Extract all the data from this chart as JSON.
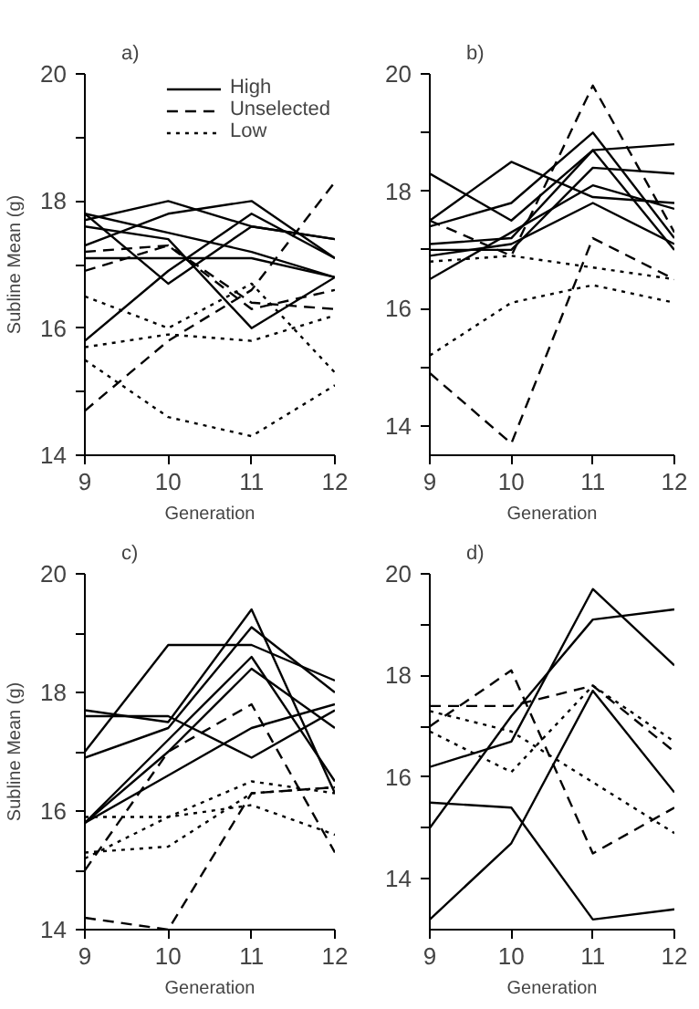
{
  "chart_data": [
    {
      "type": "line",
      "title": "a)",
      "xlabel": "Generation",
      "ylabel": "Subline Mean (g)",
      "x": [
        9,
        10,
        11,
        12
      ],
      "xlim": [
        9,
        12
      ],
      "xticks": [
        9,
        10,
        11,
        12
      ],
      "ylim": [
        14,
        20
      ],
      "yticks": [
        14,
        {
          "value": 15,
          "label": null
        },
        16,
        {
          "value": 17,
          "label": null
        },
        18,
        {
          "value": 19,
          "label": null
        },
        20
      ],
      "grid": false,
      "legend": "top right",
      "series": [
        {
          "name": "High",
          "color": "#000000",
          "line_style": "solid",
          "values": [
            17.8,
            17.5,
            17.2,
            16.8
          ]
        },
        {
          "color": "#000000",
          "line_style": "solid",
          "values": [
            17.7,
            18.0,
            17.6,
            17.4
          ]
        },
        {
          "color": "#000000",
          "line_style": "solid",
          "values": [
            17.3,
            17.8,
            18.0,
            17.1
          ]
        },
        {
          "color": "#000000",
          "line_style": "solid",
          "values": [
            17.1,
            17.1,
            17.1,
            16.8
          ]
        },
        {
          "color": "#000000",
          "line_style": "solid",
          "values": [
            15.8,
            16.9,
            17.8,
            17.1
          ]
        },
        {
          "color": "#000000",
          "line_style": "solid",
          "values": [
            17.8,
            16.7,
            17.6,
            17.4
          ]
        },
        {
          "color": "#000000",
          "line_style": "solid",
          "values": [
            17.6,
            17.4,
            16.0,
            16.8
          ]
        },
        {
          "name": "Unselected",
          "color": "#000000",
          "line_style": "dashed",
          "values": [
            16.9,
            17.3,
            16.3,
            16.6
          ]
        },
        {
          "color": "#000000",
          "line_style": "dashed",
          "values": [
            14.7,
            15.8,
            16.6,
            18.3
          ]
        },
        {
          "color": "#000000",
          "line_style": "dashed",
          "values": [
            17.2,
            17.3,
            16.4,
            16.3
          ]
        },
        {
          "name": "Low",
          "color": "#000000",
          "line_style": "dotted",
          "values": [
            15.7,
            15.9,
            15.8,
            16.2
          ]
        },
        {
          "color": "#000000",
          "line_style": "dotted",
          "values": [
            15.5,
            14.6,
            14.3,
            15.1
          ]
        },
        {
          "color": "#000000",
          "line_style": "dotted",
          "values": [
            16.5,
            16.0,
            16.7,
            15.3
          ]
        }
      ]
    },
    {
      "type": "line",
      "title": "b)",
      "xlabel": "Generation",
      "x": [
        9,
        10,
        11,
        12
      ],
      "xlim": [
        9,
        12
      ],
      "xticks": [
        9,
        10,
        11,
        12
      ],
      "ylim": [
        13.5,
        20
      ],
      "yticks": [
        14,
        {
          "value": 15,
          "label": null
        },
        16,
        {
          "value": 17,
          "label": null
        },
        18,
        {
          "value": 19,
          "label": null
        },
        20
      ],
      "grid": false,
      "series": [
        {
          "color": "#000000",
          "line_style": "solid",
          "values": [
            18.3,
            17.5,
            18.7,
            17.0
          ]
        },
        {
          "color": "#000000",
          "line_style": "solid",
          "values": [
            17.5,
            18.5,
            17.9,
            17.8
          ]
        },
        {
          "color": "#000000",
          "line_style": "solid",
          "values": [
            17.4,
            17.8,
            19.0,
            17.2
          ]
        },
        {
          "color": "#000000",
          "line_style": "solid",
          "values": [
            17.1,
            17.2,
            18.7,
            18.8
          ]
        },
        {
          "color": "#000000",
          "line_style": "solid",
          "values": [
            17.0,
            17.0,
            18.4,
            18.3
          ]
        },
        {
          "color": "#000000",
          "line_style": "solid",
          "values": [
            16.5,
            17.3,
            18.1,
            17.7
          ]
        },
        {
          "color": "#000000",
          "line_style": "solid",
          "values": [
            16.9,
            17.1,
            17.8,
            17.1
          ]
        },
        {
          "color": "#000000",
          "line_style": "dashed",
          "values": [
            17.5,
            16.9,
            19.8,
            17.3
          ]
        },
        {
          "color": "#000000",
          "line_style": "dotted",
          "values": [
            15.2,
            16.1,
            16.4,
            16.1
          ]
        },
        {
          "color": "#000000",
          "line_style": "dashed",
          "values": [
            14.9,
            13.7,
            17.2,
            16.5
          ]
        },
        {
          "color": "#000000",
          "line_style": "dotted",
          "values": [
            16.8,
            16.9,
            16.7,
            16.5
          ]
        }
      ]
    },
    {
      "type": "line",
      "title": "c)",
      "xlabel": "Generation",
      "ylabel": "Subline Mean (g)",
      "x": [
        9,
        10,
        11,
        12
      ],
      "xlim": [
        9,
        12
      ],
      "xticks": [
        9,
        10,
        11,
        12
      ],
      "ylim": [
        14,
        20
      ],
      "yticks": [
        14,
        {
          "value": 15,
          "label": null
        },
        16,
        {
          "value": 17,
          "label": null
        },
        18,
        {
          "value": 19,
          "label": null
        },
        20
      ],
      "grid": false,
      "series": [
        {
          "color": "#000000",
          "line_style": "solid",
          "values": [
            17.0,
            18.8,
            18.8,
            18.2
          ]
        },
        {
          "color": "#000000",
          "line_style": "solid",
          "values": [
            17.7,
            17.5,
            19.4,
            16.3
          ]
        },
        {
          "color": "#000000",
          "line_style": "solid",
          "values": [
            17.6,
            17.6,
            16.9,
            17.7
          ]
        },
        {
          "color": "#000000",
          "line_style": "solid",
          "values": [
            16.9,
            17.4,
            19.1,
            18.0
          ]
        },
        {
          "color": "#000000",
          "line_style": "solid",
          "values": [
            15.8,
            17.2,
            18.6,
            16.5
          ]
        },
        {
          "color": "#000000",
          "line_style": "solid",
          "values": [
            15.8,
            17.0,
            18.4,
            17.4
          ]
        },
        {
          "color": "#000000",
          "line_style": "solid",
          "values": [
            15.8,
            16.6,
            17.4,
            17.8
          ]
        },
        {
          "color": "#000000",
          "line_style": "dashed",
          "values": [
            15.0,
            17.0,
            17.8,
            15.3
          ]
        },
        {
          "color": "#000000",
          "line_style": "dotted",
          "values": [
            15.9,
            15.9,
            16.5,
            16.3
          ]
        },
        {
          "color": "#000000",
          "line_style": "dotted",
          "values": [
            15.3,
            15.4,
            16.3,
            16.4
          ]
        },
        {
          "color": "#000000",
          "line_style": "dashed",
          "values": [
            14.2,
            14.0,
            16.3,
            16.4
          ]
        },
        {
          "color": "#000000",
          "line_style": "dotted",
          "values": [
            15.2,
            15.9,
            16.1,
            15.6
          ]
        }
      ]
    },
    {
      "type": "line",
      "title": "d)",
      "xlabel": "Generation",
      "x": [
        9,
        10,
        11,
        12
      ],
      "xlim": [
        9,
        12
      ],
      "xticks": [
        9,
        10,
        11,
        12
      ],
      "ylim": [
        13,
        20
      ],
      "yticks": [
        14,
        {
          "value": 15,
          "label": null
        },
        16,
        {
          "value": 17,
          "label": null
        },
        18,
        {
          "value": 19,
          "label": null
        },
        20
      ],
      "grid": false,
      "series": [
        {
          "color": "#000000",
          "line_style": "solid",
          "values": [
            16.2,
            16.7,
            19.7,
            18.2
          ]
        },
        {
          "color": "#000000",
          "line_style": "solid",
          "values": [
            15.0,
            17.2,
            19.1,
            19.3
          ]
        },
        {
          "color": "#000000",
          "line_style": "solid",
          "values": [
            15.5,
            15.4,
            13.2,
            13.4
          ]
        },
        {
          "color": "#000000",
          "line_style": "solid",
          "values": [
            13.2,
            14.7,
            17.7,
            15.7
          ]
        },
        {
          "color": "#000000",
          "line_style": "dashed",
          "values": [
            17.4,
            17.4,
            17.8,
            16.5
          ]
        },
        {
          "color": "#000000",
          "line_style": "dashed",
          "values": [
            17.0,
            18.1,
            14.5,
            15.4
          ]
        },
        {
          "color": "#000000",
          "line_style": "dotted",
          "values": [
            16.9,
            16.1,
            17.8,
            16.7
          ]
        },
        {
          "color": "#000000",
          "line_style": "dotted",
          "values": [
            17.3,
            16.9,
            15.9,
            14.9
          ]
        }
      ]
    }
  ]
}
